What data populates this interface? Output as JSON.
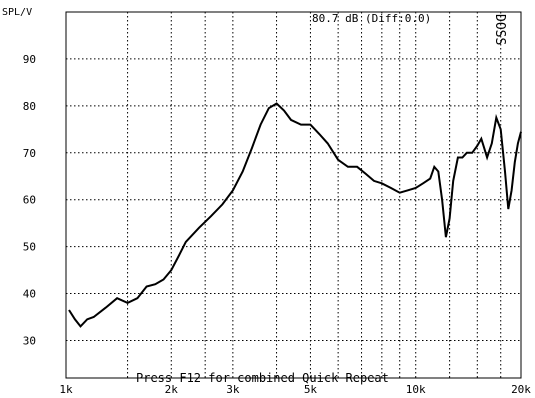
{
  "chart_data": {
    "type": "line",
    "ylabel": "SPL/V",
    "readout": "80.7 dB (Diff:0.0)",
    "watermark": "DOSS",
    "footer": "Press F12 for combined Quick Repeat",
    "xscale": "log",
    "xlim": [
      1000,
      20000
    ],
    "ylim": [
      22,
      100
    ],
    "grid": true,
    "y_ticks": [
      {
        "value": 30,
        "label": "30"
      },
      {
        "value": 40,
        "label": "40"
      },
      {
        "value": 50,
        "label": "50"
      },
      {
        "value": 60,
        "label": "60"
      },
      {
        "value": 70,
        "label": "70"
      },
      {
        "value": 80,
        "label": "80"
      },
      {
        "value": 90,
        "label": "90"
      }
    ],
    "x_ticks": [
      {
        "value": 1000,
        "label": "1k"
      },
      {
        "value": 2000,
        "label": "2k"
      },
      {
        "value": 3000,
        "label": "3k"
      },
      {
        "value": 5000,
        "label": "5k"
      },
      {
        "value": 10000,
        "label": "10k"
      },
      {
        "value": 20000,
        "label": "20k"
      }
    ],
    "x_grid_extra": [
      1500,
      2500,
      4000,
      6000,
      7000,
      8000,
      9000,
      12500,
      15000,
      17500
    ],
    "series": [
      {
        "x": [
          1020,
          1060,
          1100,
          1150,
          1200,
          1300,
          1400,
          1500,
          1600,
          1700,
          1800,
          1900,
          2000,
          2100,
          2200,
          2400,
          2600,
          2800,
          3000,
          3200,
          3400,
          3600,
          3800,
          4000,
          4200,
          4400,
          4700,
          5000,
          5300,
          5600,
          6000,
          6400,
          6800,
          7200,
          7600,
          8000,
          8500,
          9000,
          9500,
          10000,
          10500,
          11000,
          11300,
          11600,
          11900,
          12200,
          12500,
          12800,
          13200,
          13600,
          14000,
          14500,
          15000,
          15400,
          15700,
          16000,
          16500,
          17000,
          17500,
          18000,
          18400,
          18800,
          19200,
          19600,
          20000
        ],
        "y": [
          36.5,
          34.5,
          33.0,
          34.5,
          35.0,
          37.0,
          39.0,
          38.0,
          39.0,
          41.5,
          42.0,
          43.0,
          45.0,
          48.0,
          51.0,
          54.0,
          56.5,
          59.0,
          62.0,
          66.0,
          71.0,
          76.0,
          79.5,
          80.5,
          79.0,
          77.0,
          76.0,
          76.0,
          74.0,
          72.0,
          68.5,
          67.0,
          67.0,
          65.5,
          64.0,
          63.5,
          62.5,
          61.5,
          62.0,
          62.5,
          63.5,
          64.5,
          67.0,
          66.0,
          60.0,
          52.0,
          56.0,
          64.0,
          69.0,
          69.0,
          70.0,
          70.0,
          71.5,
          73.0,
          71.0,
          69.0,
          72.0,
          77.5,
          75.0,
          66.0,
          58.0,
          62.0,
          68.0,
          72.0,
          74.5
        ]
      }
    ]
  }
}
